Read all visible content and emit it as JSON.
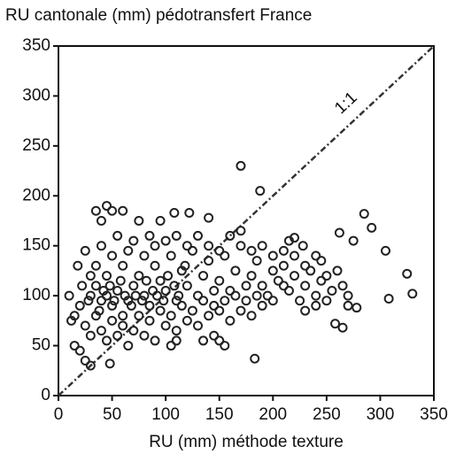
{
  "chart_data": {
    "type": "scatter",
    "title": "RU cantonale (mm) pédotransfert France",
    "x_label": "RU (mm) méthode texture",
    "annotation": "1:1",
    "xlim": [
      0,
      350
    ],
    "ylim": [
      0,
      350
    ],
    "xticks": [
      0,
      50,
      100,
      150,
      200,
      250,
      300,
      350
    ],
    "yticks": [
      0,
      50,
      100,
      150,
      200,
      250,
      300,
      350
    ],
    "color": "#222222",
    "x": [
      170,
      188,
      183,
      305,
      308,
      325,
      330,
      285,
      292,
      275,
      262,
      258,
      265,
      270,
      278,
      240,
      245,
      220,
      228,
      215,
      35,
      45,
      50,
      60,
      40,
      75,
      95,
      108,
      122,
      140,
      25,
      30,
      48,
      20,
      15,
      155,
      150,
      145,
      135,
      110,
      105,
      10,
      12,
      18,
      25,
      30,
      35,
      40,
      45,
      50,
      55,
      60,
      65,
      70,
      75,
      80,
      85,
      90,
      95,
      100,
      105,
      110,
      115,
      120,
      125,
      130,
      135,
      140,
      145,
      150,
      155,
      160,
      165,
      170,
      175,
      180,
      185,
      190,
      195,
      200,
      205,
      210,
      215,
      220,
      225,
      230,
      235,
      240,
      245,
      250,
      255,
      260,
      265,
      270,
      20,
      25,
      30,
      35,
      40,
      45,
      50,
      55,
      60,
      65,
      70,
      75,
      80,
      85,
      90,
      95,
      100,
      105,
      110,
      115,
      120,
      125,
      130,
      135,
      140,
      145,
      150,
      155,
      160,
      165,
      170,
      175,
      180,
      185,
      190,
      200,
      210,
      230,
      240,
      250,
      30,
      35,
      40,
      45,
      50,
      55,
      60,
      65,
      70,
      80,
      85,
      90,
      100,
      110,
      120,
      130,
      140,
      150,
      160,
      170,
      180,
      190,
      200,
      210,
      220,
      230,
      15,
      22,
      28,
      38,
      42,
      48,
      52,
      58,
      62,
      68,
      72,
      78,
      82,
      88,
      92,
      98,
      102,
      108,
      112,
      118
    ],
    "y": [
      230,
      205,
      37,
      145,
      97,
      122,
      102,
      182,
      168,
      155,
      163,
      72,
      68,
      90,
      88,
      140,
      135,
      158,
      150,
      155,
      185,
      190,
      185,
      185,
      175,
      175,
      175,
      183,
      183,
      178,
      35,
      30,
      32,
      45,
      50,
      50,
      55,
      60,
      55,
      55,
      50,
      100,
      75,
      130,
      145,
      120,
      110,
      95,
      100,
      90,
      105,
      80,
      95,
      110,
      120,
      100,
      90,
      130,
      115,
      105,
      140,
      95,
      125,
      110,
      145,
      100,
      120,
      135,
      90,
      115,
      140,
      105,
      125,
      150,
      95,
      120,
      135,
      110,
      100,
      125,
      115,
      130,
      105,
      120,
      95,
      110,
      125,
      100,
      115,
      120,
      105,
      125,
      110,
      100,
      90,
      70,
      60,
      80,
      65,
      55,
      75,
      60,
      70,
      50,
      65,
      80,
      60,
      75,
      55,
      85,
      70,
      80,
      65,
      90,
      75,
      85,
      70,
      95,
      80,
      105,
      85,
      95,
      75,
      100,
      85,
      110,
      80,
      100,
      90,
      95,
      110,
      85,
      90,
      95,
      100,
      130,
      150,
      120,
      140,
      160,
      130,
      145,
      155,
      140,
      160,
      150,
      155,
      160,
      150,
      160,
      150,
      145,
      160,
      165,
      145,
      150,
      140,
      145,
      140,
      130,
      80,
      110,
      95,
      85,
      105,
      110,
      95,
      115,
      100,
      90,
      100,
      95,
      115,
      105,
      100,
      95,
      120,
      110,
      100,
      130
    ]
  }
}
